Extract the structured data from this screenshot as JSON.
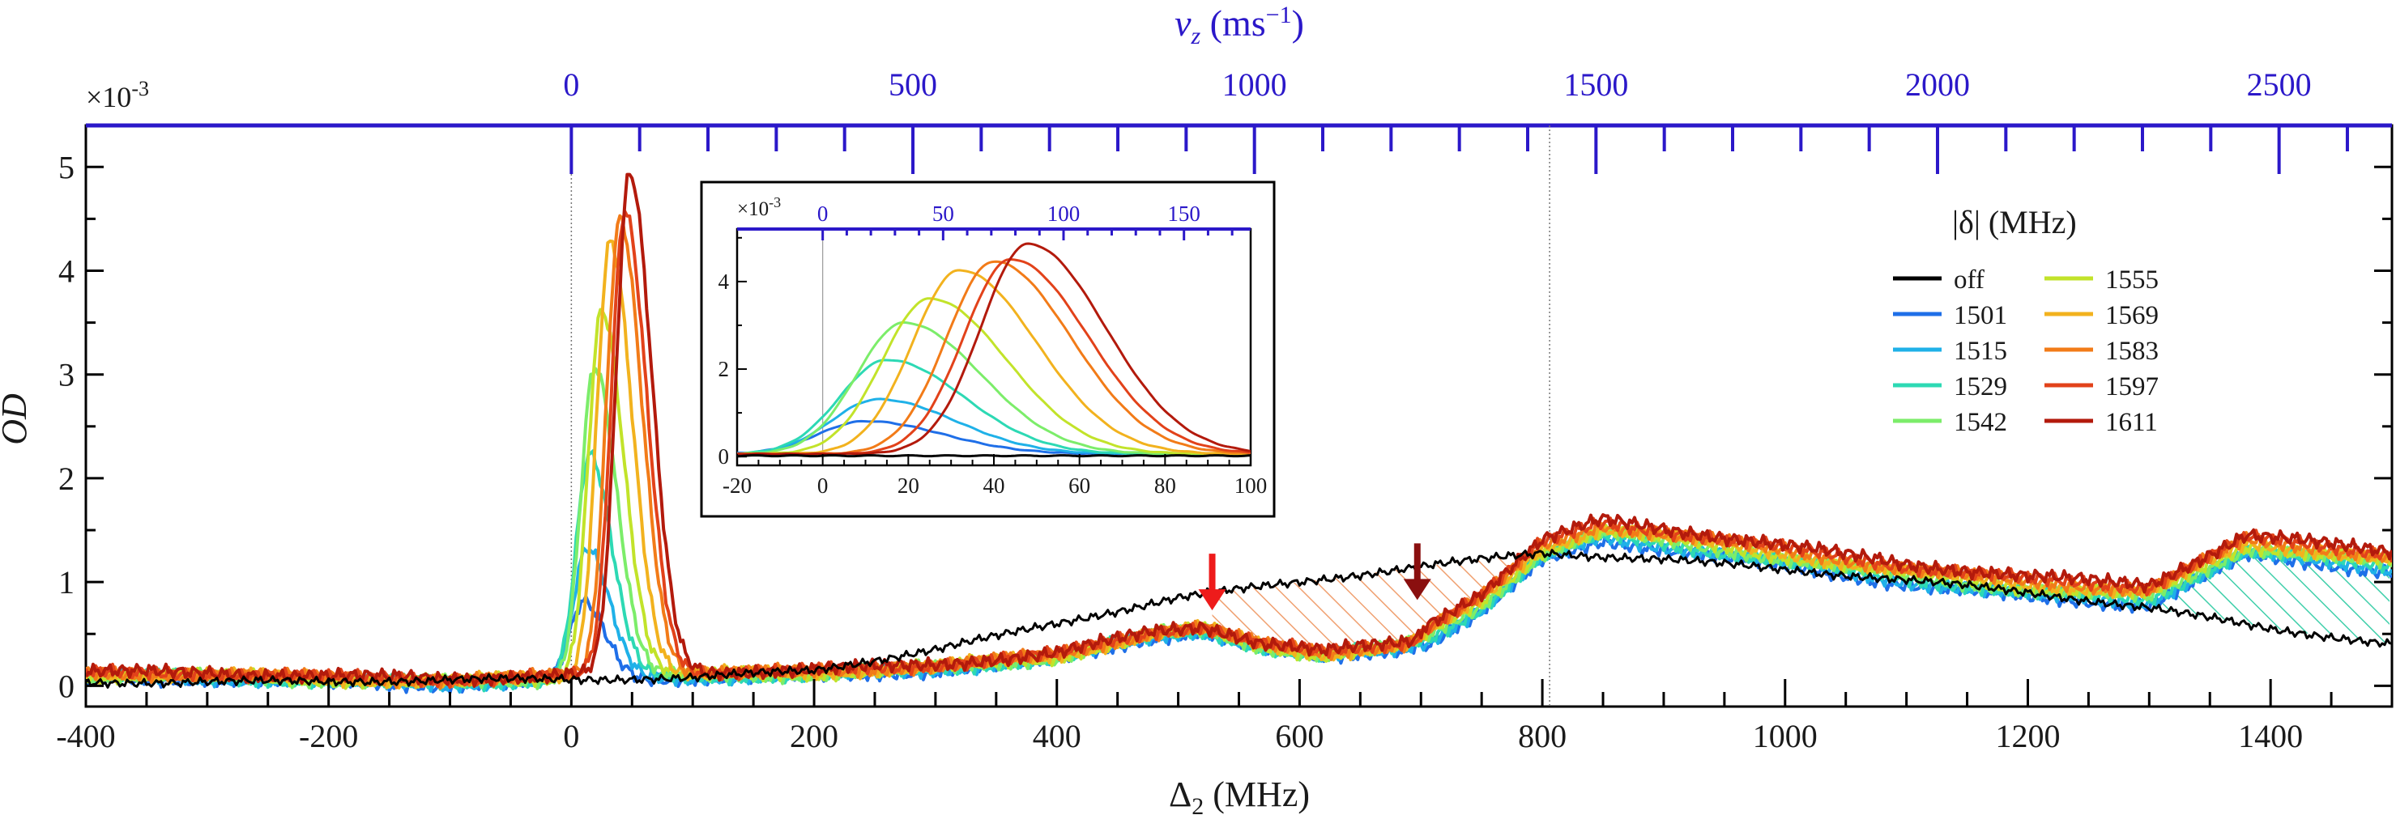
{
  "chart_data": {
    "type": "line",
    "xlabel": "Δ",
    "xlabel_sub": "2",
    "xlabel_unit": " (MHz)",
    "ylabel": "OD",
    "y_multiplier": "×10",
    "y_multiplier_exp": "-3",
    "xlim": [
      -400,
      1500
    ],
    "ylim": [
      -0.2,
      5.4
    ],
    "x_ticks": [
      -400,
      -200,
      0,
      200,
      400,
      600,
      800,
      1000,
      1200,
      1400
    ],
    "y_ticks": [
      0,
      1,
      2,
      3,
      4,
      5
    ],
    "top_axis": {
      "label_main": "v",
      "label_sub": "z",
      "label_unit": " (ms",
      "label_exp": "−1",
      "label_close": ")",
      "ticks": [
        0,
        500,
        1000,
        1500,
        2000,
        2500
      ],
      "zero_at_mhz": 0,
      "mhz_per_ms": 0.5628
    },
    "reference_lines_mhz": [
      0,
      806
    ],
    "legend_title": "|δ| (MHz)",
    "series": [
      {
        "name": "off",
        "color": "#000000",
        "peak_pos": null,
        "peak": 0
      },
      {
        "name": "1501",
        "color": "#1f6fe8",
        "peak_pos": 10,
        "peak": 0.75
      },
      {
        "name": "1515",
        "color": "#1fb1e8",
        "peak_pos": 13,
        "peak": 1.25
      },
      {
        "name": "1529",
        "color": "#2dd9b4",
        "peak_pos": 15,
        "peak": 2.15
      },
      {
        "name": "1542",
        "color": "#7ced6a",
        "peak_pos": 19,
        "peak": 3.0
      },
      {
        "name": "1555",
        "color": "#c2e32a",
        "peak_pos": 25,
        "peak": 3.55
      },
      {
        "name": "1569",
        "color": "#f2b21e",
        "peak_pos": 32,
        "peak": 4.2
      },
      {
        "name": "1583",
        "color": "#f27b18",
        "peak_pos": 40,
        "peak": 4.4
      },
      {
        "name": "1597",
        "color": "#e2421a",
        "peak_pos": 44,
        "peak": 4.45
      },
      {
        "name": "1611",
        "color": "#b31a0c",
        "peak_pos": 48,
        "peak": 4.8
      }
    ],
    "off_trace": {
      "x": [
        -400,
        -300,
        -200,
        -100,
        0,
        100,
        200,
        300,
        400,
        500,
        600,
        700,
        800,
        900,
        1000,
        1100,
        1200,
        1300,
        1400,
        1500
      ],
      "y": [
        0.03,
        0.04,
        0.04,
        0.06,
        0.06,
        0.08,
        0.15,
        0.35,
        0.6,
        0.85,
        1.0,
        1.15,
        1.28,
        1.22,
        1.12,
        1.02,
        0.9,
        0.75,
        0.55,
        0.4
      ]
    },
    "color_trace_shape": {
      "x": [
        -400,
        -300,
        -200,
        -100,
        60,
        200,
        300,
        400,
        480,
        520,
        570,
        620,
        690,
        750,
        800,
        850,
        900,
        1000,
        1100,
        1200,
        1300,
        1380,
        1420,
        1500
      ],
      "y": [
        0.1,
        0.1,
        0.06,
        0.04,
        0.1,
        0.12,
        0.18,
        0.28,
        0.5,
        0.55,
        0.38,
        0.3,
        0.4,
        0.8,
        1.3,
        1.5,
        1.42,
        1.25,
        1.08,
        0.95,
        0.88,
        1.35,
        1.3,
        1.2
      ]
    },
    "arrows": [
      {
        "x": 528,
        "y_tip": 0.68,
        "color": "#ee1b1b"
      },
      {
        "x": 697,
        "y_tip": 0.78,
        "color": "#8a0f0f"
      }
    ],
    "inset": {
      "xlim": [
        -20,
        100
      ],
      "ylim": [
        -0.2,
        5.2
      ],
      "x_ticks": [
        -20,
        0,
        20,
        40,
        60,
        80,
        100
      ],
      "y_ticks": [
        0,
        2,
        4
      ],
      "top_ticks": [
        0,
        50,
        100,
        150
      ],
      "y_multiplier": "×10",
      "y_multiplier_exp": "-3"
    }
  }
}
